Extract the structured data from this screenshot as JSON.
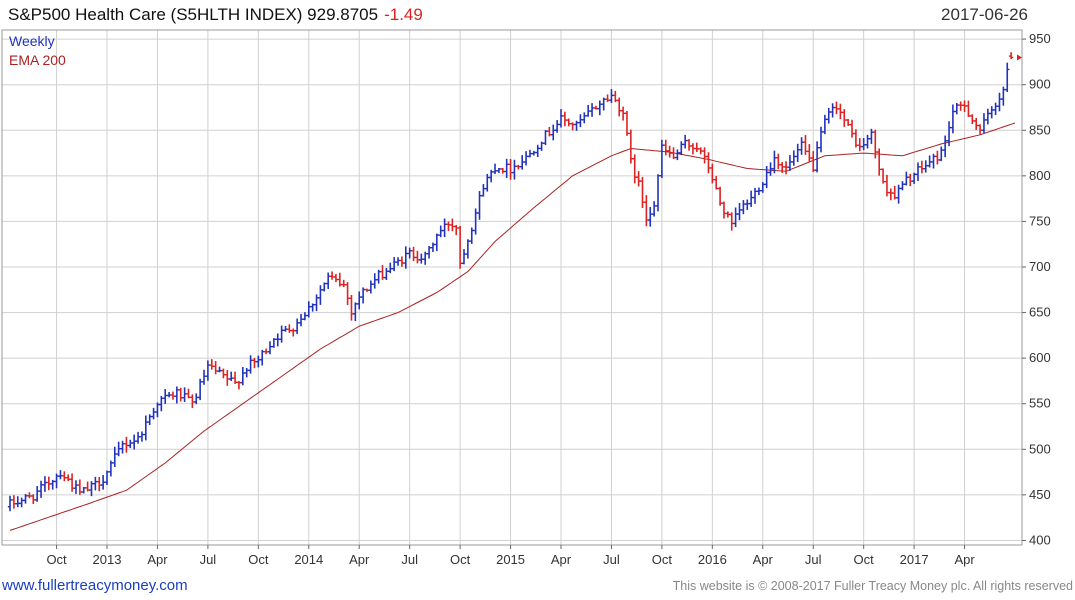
{
  "header": {
    "title": "S&P500 Health Care (S5HLTH INDEX) 929.8705",
    "change": "-1.49",
    "date": "2017-06-26"
  },
  "footer": {
    "website": "www.fullertreacymoney.com",
    "copyright": "This website is © 2008-2017 Fuller Treacy Money plc. All rights reserved"
  },
  "colors": {
    "up": "#2233bb",
    "down": "#dd2222",
    "ema": "#aa2222",
    "grid": "#d0d0d0",
    "change": "#dd2222"
  },
  "chart_data": {
    "type": "ohlc",
    "frequency": "Weekly",
    "legend": [
      {
        "name": "Weekly",
        "color": "#2233bb"
      },
      {
        "name": "EMA 200",
        "color": "#aa2222"
      }
    ],
    "legend_position": "top-left",
    "y_axis_position": "right",
    "ylim": [
      395,
      960
    ],
    "yticks": [
      400,
      450,
      500,
      550,
      600,
      650,
      700,
      750,
      800,
      850,
      900,
      950
    ],
    "grid": true,
    "x_ticks": [
      {
        "label": "Oct",
        "week": 12
      },
      {
        "label": "2013",
        "week": 25
      },
      {
        "label": "Apr",
        "week": 38
      },
      {
        "label": "Jul",
        "week": 51
      },
      {
        "label": "Oct",
        "week": 64
      },
      {
        "label": "2014",
        "week": 77
      },
      {
        "label": "Apr",
        "week": 90
      },
      {
        "label": "Jul",
        "week": 103
      },
      {
        "label": "Oct",
        "week": 116
      },
      {
        "label": "2015",
        "week": 129
      },
      {
        "label": "Apr",
        "week": 142
      },
      {
        "label": "Jul",
        "week": 155
      },
      {
        "label": "Oct",
        "week": 168
      },
      {
        "label": "2016",
        "week": 181
      },
      {
        "label": "Apr",
        "week": 194
      },
      {
        "label": "Jul",
        "week": 207
      },
      {
        "label": "Oct",
        "week": 220
      },
      {
        "label": "2017",
        "week": 233
      },
      {
        "label": "Apr",
        "week": 246
      }
    ],
    "anchors_close": [
      [
        0,
        440
      ],
      [
        6,
        449
      ],
      [
        13,
        475
      ],
      [
        18,
        452
      ],
      [
        21,
        458
      ],
      [
        24,
        468
      ],
      [
        29,
        505
      ],
      [
        33,
        512
      ],
      [
        38,
        552
      ],
      [
        43,
        562
      ],
      [
        47,
        550
      ],
      [
        51,
        590
      ],
      [
        54,
        582
      ],
      [
        58,
        572
      ],
      [
        61,
        590
      ],
      [
        64,
        598
      ],
      [
        68,
        622
      ],
      [
        73,
        635
      ],
      [
        77,
        655
      ],
      [
        82,
        688
      ],
      [
        86,
        680
      ],
      [
        88,
        652
      ],
      [
        90,
        668
      ],
      [
        95,
        690
      ],
      [
        100,
        705
      ],
      [
        103,
        715
      ],
      [
        107,
        710
      ],
      [
        110,
        735
      ],
      [
        113,
        748
      ],
      [
        115,
        745
      ],
      [
        116,
        705
      ],
      [
        119,
        745
      ],
      [
        122,
        790
      ],
      [
        125,
        810
      ],
      [
        129,
        808
      ],
      [
        133,
        820
      ],
      [
        137,
        840
      ],
      [
        142,
        862
      ],
      [
        146,
        855
      ],
      [
        149,
        868
      ],
      [
        152,
        880
      ],
      [
        155,
        888
      ],
      [
        158,
        870
      ],
      [
        160,
        815
      ],
      [
        162,
        790
      ],
      [
        164,
        755
      ],
      [
        166,
        770
      ],
      [
        168,
        830
      ],
      [
        171,
        820
      ],
      [
        174,
        835
      ],
      [
        177,
        832
      ],
      [
        180,
        810
      ],
      [
        183,
        770
      ],
      [
        186,
        745
      ],
      [
        188,
        762
      ],
      [
        191,
        775
      ],
      [
        194,
        795
      ],
      [
        197,
        820
      ],
      [
        200,
        808
      ],
      [
        204,
        832
      ],
      [
        207,
        810
      ],
      [
        210,
        860
      ],
      [
        213,
        878
      ],
      [
        216,
        852
      ],
      [
        219,
        830
      ],
      [
        222,
        845
      ],
      [
        225,
        790
      ],
      [
        228,
        778
      ],
      [
        231,
        795
      ],
      [
        234,
        805
      ],
      [
        237,
        815
      ],
      [
        240,
        825
      ],
      [
        243,
        870
      ],
      [
        246,
        878
      ],
      [
        248,
        862
      ],
      [
        250,
        850
      ],
      [
        253,
        872
      ],
      [
        256,
        895
      ],
      [
        258,
        929.87
      ]
    ],
    "ema_anchors": [
      [
        0,
        411
      ],
      [
        20,
        440
      ],
      [
        30,
        455
      ],
      [
        40,
        485
      ],
      [
        50,
        520
      ],
      [
        60,
        550
      ],
      [
        70,
        580
      ],
      [
        80,
        610
      ],
      [
        90,
        635
      ],
      [
        100,
        650
      ],
      [
        110,
        672
      ],
      [
        118,
        695
      ],
      [
        125,
        728
      ],
      [
        135,
        765
      ],
      [
        145,
        800
      ],
      [
        155,
        822
      ],
      [
        160,
        830
      ],
      [
        170,
        826
      ],
      [
        180,
        818
      ],
      [
        190,
        808
      ],
      [
        200,
        805
      ],
      [
        210,
        822
      ],
      [
        220,
        825
      ],
      [
        230,
        822
      ],
      [
        240,
        835
      ],
      [
        250,
        845
      ],
      [
        259,
        858
      ]
    ],
    "last_close": 929.87
  }
}
